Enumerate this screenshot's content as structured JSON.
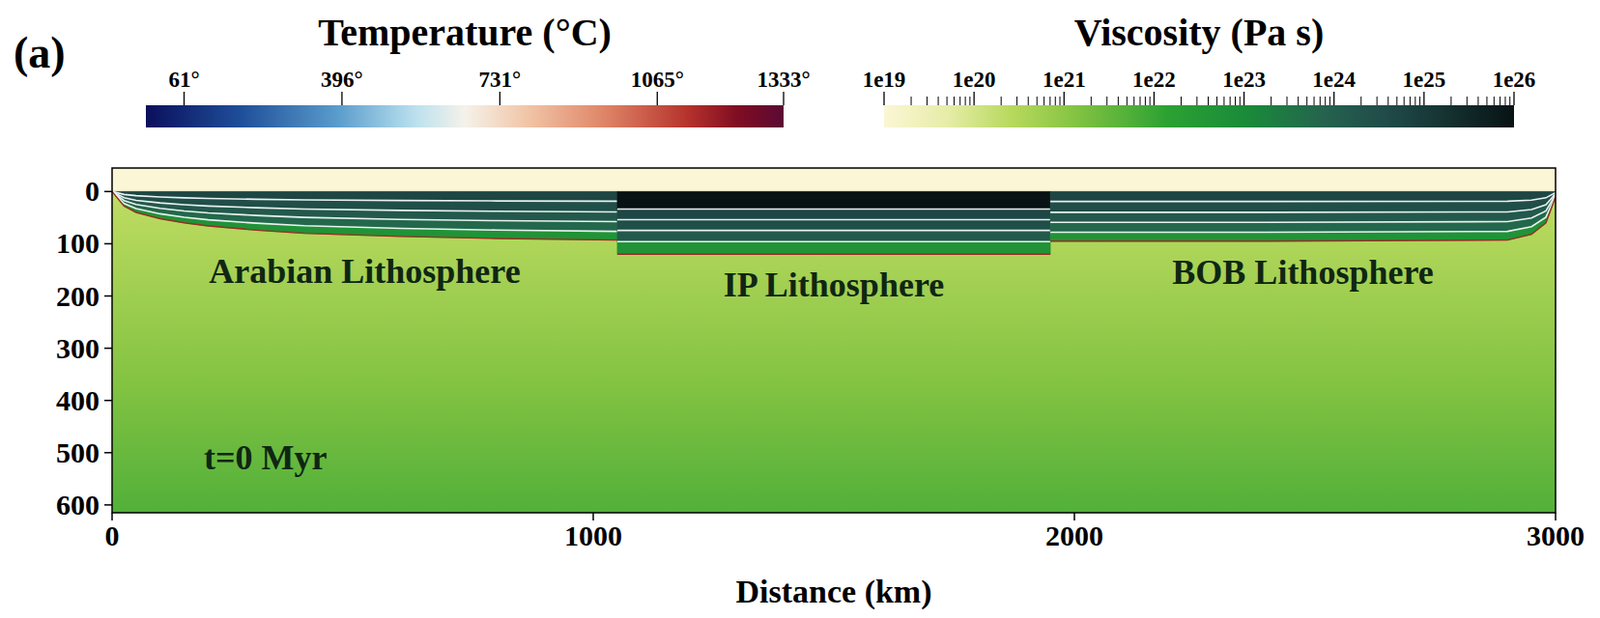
{
  "chart_data": {
    "type": "section",
    "panel": "(a)",
    "xlabel": "Distance (km)",
    "xlim": [
      0,
      3000
    ],
    "xticks": [
      0,
      1000,
      2000,
      3000
    ],
    "ylim": [
      -45,
      615
    ],
    "yticks": [
      0,
      100,
      200,
      300,
      400,
      500,
      600
    ],
    "annotation": "t=0 Myr",
    "air_viscosity": 1e+19,
    "mantle_viscosity": [
      2e+20,
      5e+21
    ],
    "lithospheres": [
      {
        "name": "Arabian Lithosphere",
        "x": [
          0,
          25,
          50,
          100,
          150,
          200,
          300,
          400,
          600,
          800,
          1050
        ],
        "base": [
          0,
          28,
          40,
          52,
          60,
          66,
          74,
          80,
          86,
          90,
          93
        ],
        "layers": [
          {
            "to": 0.2,
            "viscosity": 5e+24
          },
          {
            "to": 0.42,
            "viscosity": 3e+24
          },
          {
            "to": 0.62,
            "viscosity": 1.5e+24
          },
          {
            "to": 0.82,
            "viscosity": 6e+23
          },
          {
            "to": 1,
            "viscosity": 5e+22
          }
        ]
      },
      {
        "name": "IP Lithosphere",
        "x": [
          1050,
          1950
        ],
        "base": [
          120,
          120
        ],
        "layers": [
          {
            "to": 0.28,
            "viscosity": 1e+26
          },
          {
            "to": 0.45,
            "viscosity": 5e+24
          },
          {
            "to": 0.62,
            "viscosity": 3e+24
          },
          {
            "to": 0.8,
            "viscosity": 1.5e+24
          },
          {
            "to": 1,
            "viscosity": 5e+22
          }
        ]
      },
      {
        "name": "BOB Lithosphere",
        "x": [
          1950,
          2400,
          2900,
          2950,
          2980,
          3000
        ],
        "base": [
          95,
          95,
          93,
          82,
          60,
          10
        ],
        "layers": [
          {
            "to": 0.2,
            "viscosity": 5e+24
          },
          {
            "to": 0.42,
            "viscosity": 3e+24
          },
          {
            "to": 0.62,
            "viscosity": 1.5e+24
          },
          {
            "to": 0.82,
            "viscosity": 6e+23
          },
          {
            "to": 1,
            "viscosity": 5e+22
          }
        ]
      }
    ],
    "colorbars": [
      {
        "title": "Temperature (°C)",
        "clim": [
          -20,
          1333
        ],
        "ticks": [
          {
            "value": 61,
            "label": "61°"
          },
          {
            "value": 396,
            "label": "396°"
          },
          {
            "value": 731,
            "label": "731°"
          },
          {
            "value": 1065,
            "label": "1065°"
          },
          {
            "value": 1333,
            "label": "1333°"
          }
        ]
      },
      {
        "title": "Viscosity (Pa s)",
        "clim": [
          1e+19,
          1e+26
        ],
        "log": true,
        "ticks": [
          {
            "value": 1e+19,
            "label": "1e19"
          },
          {
            "value": 1e+20,
            "label": "1e20"
          },
          {
            "value": 1e+21,
            "label": "1e21"
          },
          {
            "value": 1e+22,
            "label": "1e22"
          },
          {
            "value": 1e+23,
            "label": "1e23"
          },
          {
            "value": 1e+24,
            "label": "1e24"
          },
          {
            "value": 1e+25,
            "label": "1e25"
          },
          {
            "value": 1e+26,
            "label": "1e26"
          }
        ],
        "minor_ticks": [
          2e+19,
          3e+19,
          4e+19,
          5e+19,
          6e+19,
          7e+19,
          8e+19,
          9e+19,
          2e+20,
          3e+20,
          4e+20,
          5e+20,
          6e+20,
          7e+20,
          8e+20,
          9e+20,
          2e+21,
          3e+21,
          4e+21,
          5e+21,
          6e+21,
          7e+21,
          8e+21,
          9e+21,
          2e+22,
          3e+22,
          4e+22,
          5e+22,
          6e+22,
          7e+22,
          8e+22,
          9e+22,
          2e+23,
          3e+23,
          4e+23,
          5e+23,
          6e+23,
          7e+23,
          8e+23,
          9e+23,
          2e+24,
          3e+24,
          4e+24,
          5e+24,
          6e+24,
          7e+24,
          8e+24,
          9e+24,
          2e+25,
          3e+25,
          4e+25,
          5e+25,
          6e+25,
          7e+25,
          8e+25,
          9e+25
        ]
      }
    ]
  }
}
